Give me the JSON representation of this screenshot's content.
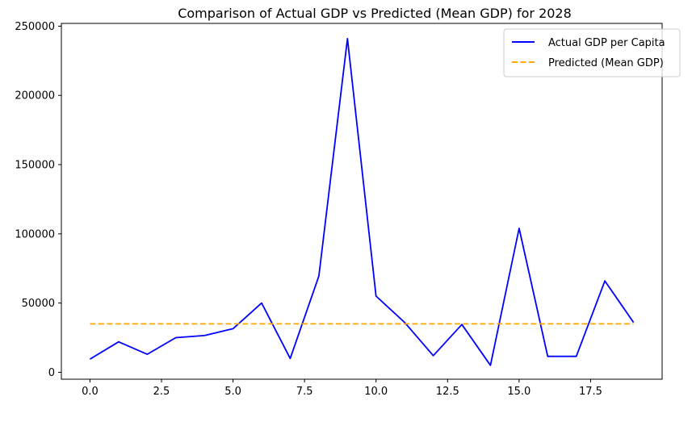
{
  "chart_data": {
    "type": "line",
    "title": "Comparison of Actual GDP vs Predicted (Mean GDP) for 2028",
    "xlabel": "",
    "ylabel": "",
    "xlim": [
      -1,
      20
    ],
    "ylim": [
      -5000,
      252000
    ],
    "x_ticks": [
      0.0,
      2.5,
      5.0,
      7.5,
      10.0,
      12.5,
      15.0,
      17.5
    ],
    "x_tick_labels": [
      "0.0",
      "2.5",
      "5.0",
      "7.5",
      "10.0",
      "12.5",
      "15.0",
      "17.5"
    ],
    "y_ticks": [
      0,
      50000,
      100000,
      150000,
      200000,
      250000
    ],
    "y_tick_labels": [
      "0",
      "50000",
      "100000",
      "150000",
      "200000",
      "250000"
    ],
    "grid": false,
    "legend_position": "top-right",
    "series": [
      {
        "name": "Actual GDP per Capita",
        "color": "#0000ff",
        "style": "solid",
        "x": [
          0,
          1,
          2,
          3,
          4,
          5,
          6,
          7,
          8,
          9,
          10,
          11,
          12,
          13,
          14,
          15,
          16,
          17,
          18,
          19
        ],
        "values": [
          9500,
          22000,
          13000,
          25000,
          26500,
          31500,
          50000,
          10000,
          69500,
          241000,
          55000,
          36000,
          12000,
          34500,
          5000,
          104000,
          11500,
          11500,
          66000,
          36000
        ]
      },
      {
        "name": "Predicted (Mean GDP)",
        "color": "#ffa500",
        "style": "dashed",
        "x": [
          0,
          1,
          2,
          3,
          4,
          5,
          6,
          7,
          8,
          9,
          10,
          11,
          12,
          13,
          14,
          15,
          16,
          17,
          18,
          19
        ],
        "values": [
          35000,
          35000,
          35000,
          35000,
          35000,
          35000,
          35000,
          35000,
          35000,
          35000,
          35000,
          35000,
          35000,
          35000,
          35000,
          35000,
          35000,
          35000,
          35000,
          35000
        ]
      }
    ]
  }
}
